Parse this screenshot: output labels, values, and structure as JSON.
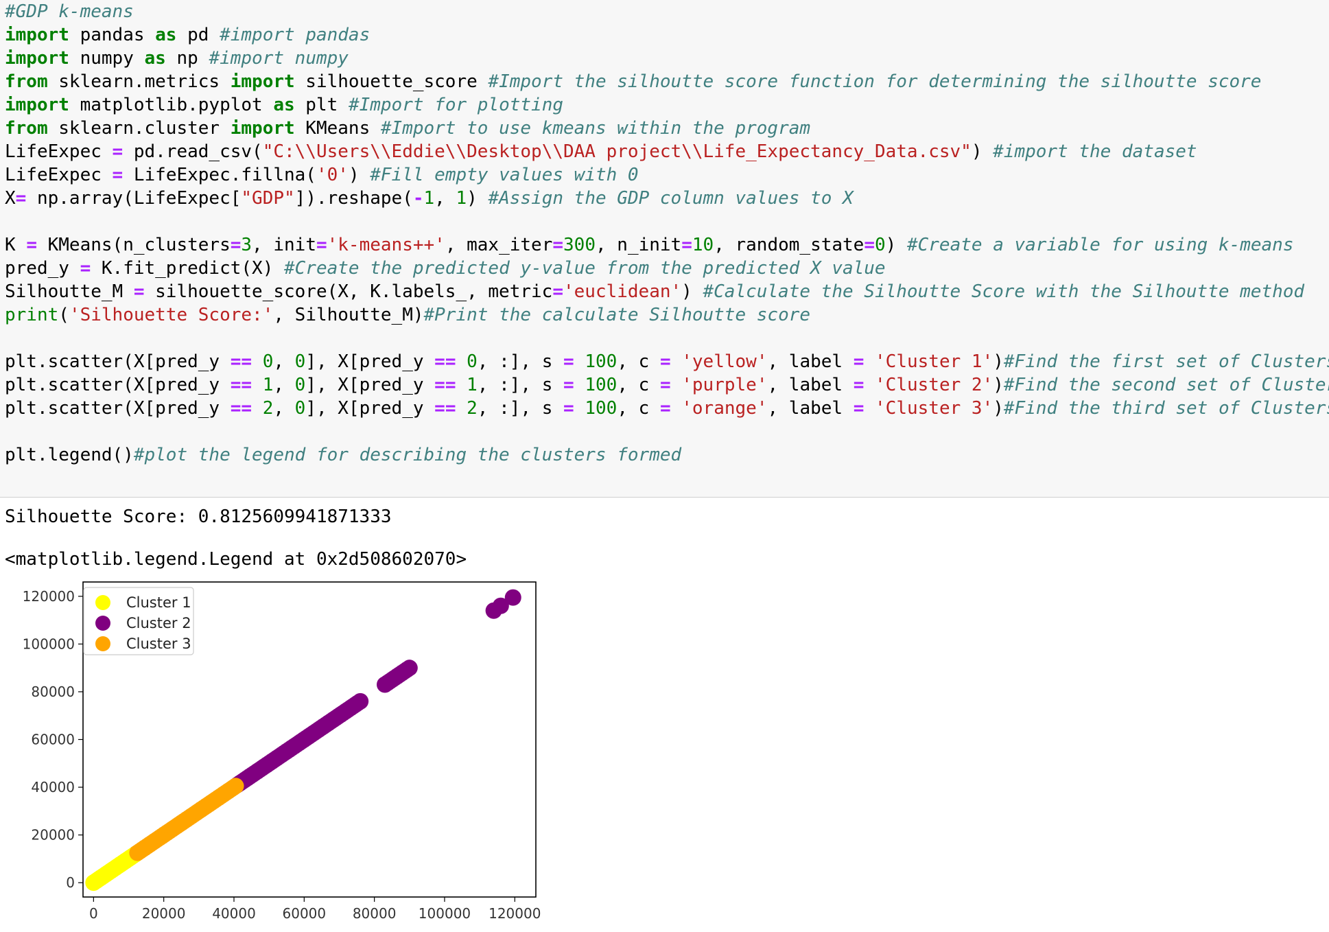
{
  "code_cell": {
    "lines": [
      [
        {
          "t": "#GDP k-means",
          "c": "cm"
        }
      ],
      [
        {
          "t": "import",
          "c": "kw"
        },
        {
          "t": " pandas "
        },
        {
          "t": "as",
          "c": "kw"
        },
        {
          "t": " pd "
        },
        {
          "t": "#import pandas",
          "c": "cm"
        }
      ],
      [
        {
          "t": "import",
          "c": "kw"
        },
        {
          "t": " numpy "
        },
        {
          "t": "as",
          "c": "kw"
        },
        {
          "t": " np "
        },
        {
          "t": "#import numpy",
          "c": "cm"
        }
      ],
      [
        {
          "t": "from",
          "c": "kw"
        },
        {
          "t": " sklearn.metrics "
        },
        {
          "t": "import",
          "c": "kw"
        },
        {
          "t": " silhouette_score "
        },
        {
          "t": "#Import the silhoutte score function for determining the silhoutte score",
          "c": "cm"
        }
      ],
      [
        {
          "t": "import",
          "c": "kw"
        },
        {
          "t": " matplotlib.pyplot "
        },
        {
          "t": "as",
          "c": "kw"
        },
        {
          "t": " plt "
        },
        {
          "t": "#Import for plotting",
          "c": "cm"
        }
      ],
      [
        {
          "t": "from",
          "c": "kw"
        },
        {
          "t": " sklearn.cluster "
        },
        {
          "t": "import",
          "c": "kw"
        },
        {
          "t": " KMeans "
        },
        {
          "t": "#Import to use kmeans within the program",
          "c": "cm"
        }
      ],
      [
        {
          "t": "LifeExpec "
        },
        {
          "t": "=",
          "c": "op"
        },
        {
          "t": " pd.read_csv("
        },
        {
          "t": "\"C:\\\\Users\\\\Eddie\\\\Desktop\\\\DAA project\\\\Life_Expectancy_Data.csv\"",
          "c": "st"
        },
        {
          "t": ") "
        },
        {
          "t": "#import the dataset",
          "c": "cm"
        }
      ],
      [
        {
          "t": "LifeExpec "
        },
        {
          "t": "=",
          "c": "op"
        },
        {
          "t": " LifeExpec.fillna("
        },
        {
          "t": "'0'",
          "c": "st"
        },
        {
          "t": ") "
        },
        {
          "t": "#Fill empty values with 0",
          "c": "cm"
        }
      ],
      [
        {
          "t": "X"
        },
        {
          "t": "=",
          "c": "op"
        },
        {
          "t": " np.array(LifeExpec["
        },
        {
          "t": "\"GDP\"",
          "c": "st"
        },
        {
          "t": "]).reshape("
        },
        {
          "t": "-",
          "c": "op"
        },
        {
          "t": "1",
          "c": "nu"
        },
        {
          "t": ", "
        },
        {
          "t": "1",
          "c": "nu"
        },
        {
          "t": ") "
        },
        {
          "t": "#Assign the GDP column values to X",
          "c": "cm"
        }
      ],
      [],
      [
        {
          "t": "K "
        },
        {
          "t": "=",
          "c": "op"
        },
        {
          "t": " KMeans(n_clusters"
        },
        {
          "t": "=",
          "c": "op"
        },
        {
          "t": "3",
          "c": "nu"
        },
        {
          "t": ", init"
        },
        {
          "t": "=",
          "c": "op"
        },
        {
          "t": "'k-means++'",
          "c": "st"
        },
        {
          "t": ", max_iter"
        },
        {
          "t": "=",
          "c": "op"
        },
        {
          "t": "300",
          "c": "nu"
        },
        {
          "t": ", n_init"
        },
        {
          "t": "=",
          "c": "op"
        },
        {
          "t": "10",
          "c": "nu"
        },
        {
          "t": ", random_state"
        },
        {
          "t": "=",
          "c": "op"
        },
        {
          "t": "0",
          "c": "nu"
        },
        {
          "t": ") "
        },
        {
          "t": "#Create a variable for using k-means",
          "c": "cm"
        }
      ],
      [
        {
          "t": "pred_y "
        },
        {
          "t": "=",
          "c": "op"
        },
        {
          "t": " K.fit_predict(X) "
        },
        {
          "t": "#Create the predicted y-value from the predicted X value",
          "c": "cm"
        }
      ],
      [
        {
          "t": "Silhoutte_M "
        },
        {
          "t": "=",
          "c": "op"
        },
        {
          "t": " silhouette_score(X, K.labels_, metric"
        },
        {
          "t": "=",
          "c": "op"
        },
        {
          "t": "'euclidean'",
          "c": "st"
        },
        {
          "t": ") "
        },
        {
          "t": "#Calculate the Silhoutte Score with the Silhoutte method",
          "c": "cm"
        }
      ],
      [
        {
          "t": "print",
          "c": "bi"
        },
        {
          "t": "("
        },
        {
          "t": "'Silhouette Score:'",
          "c": "st"
        },
        {
          "t": ", Silhoutte_M)"
        },
        {
          "t": "#Print the calculate Silhoutte score",
          "c": "cm"
        }
      ],
      [],
      [
        {
          "t": "plt.scatter(X[pred_y "
        },
        {
          "t": "==",
          "c": "op"
        },
        {
          "t": " "
        },
        {
          "t": "0",
          "c": "nu"
        },
        {
          "t": ", "
        },
        {
          "t": "0",
          "c": "nu"
        },
        {
          "t": "], X[pred_y "
        },
        {
          "t": "==",
          "c": "op"
        },
        {
          "t": " "
        },
        {
          "t": "0",
          "c": "nu"
        },
        {
          "t": ", :], s "
        },
        {
          "t": "=",
          "c": "op"
        },
        {
          "t": " "
        },
        {
          "t": "100",
          "c": "nu"
        },
        {
          "t": ", c "
        },
        {
          "t": "=",
          "c": "op"
        },
        {
          "t": " "
        },
        {
          "t": "'yellow'",
          "c": "st"
        },
        {
          "t": ", label "
        },
        {
          "t": "=",
          "c": "op"
        },
        {
          "t": " "
        },
        {
          "t": "'Cluster 1'",
          "c": "st"
        },
        {
          "t": ")"
        },
        {
          "t": "#Find the first set of Clusters",
          "c": "cm"
        }
      ],
      [
        {
          "t": "plt.scatter(X[pred_y "
        },
        {
          "t": "==",
          "c": "op"
        },
        {
          "t": " "
        },
        {
          "t": "1",
          "c": "nu"
        },
        {
          "t": ", "
        },
        {
          "t": "0",
          "c": "nu"
        },
        {
          "t": "], X[pred_y "
        },
        {
          "t": "==",
          "c": "op"
        },
        {
          "t": " "
        },
        {
          "t": "1",
          "c": "nu"
        },
        {
          "t": ", :], s "
        },
        {
          "t": "=",
          "c": "op"
        },
        {
          "t": " "
        },
        {
          "t": "100",
          "c": "nu"
        },
        {
          "t": ", c "
        },
        {
          "t": "=",
          "c": "op"
        },
        {
          "t": " "
        },
        {
          "t": "'purple'",
          "c": "st"
        },
        {
          "t": ", label "
        },
        {
          "t": "=",
          "c": "op"
        },
        {
          "t": " "
        },
        {
          "t": "'Cluster 2'",
          "c": "st"
        },
        {
          "t": ")"
        },
        {
          "t": "#Find the second set of Clusters",
          "c": "cm"
        }
      ],
      [
        {
          "t": "plt.scatter(X[pred_y "
        },
        {
          "t": "==",
          "c": "op"
        },
        {
          "t": " "
        },
        {
          "t": "2",
          "c": "nu"
        },
        {
          "t": ", "
        },
        {
          "t": "0",
          "c": "nu"
        },
        {
          "t": "], X[pred_y "
        },
        {
          "t": "==",
          "c": "op"
        },
        {
          "t": " "
        },
        {
          "t": "2",
          "c": "nu"
        },
        {
          "t": ", :], s "
        },
        {
          "t": "=",
          "c": "op"
        },
        {
          "t": " "
        },
        {
          "t": "100",
          "c": "nu"
        },
        {
          "t": ", c "
        },
        {
          "t": "=",
          "c": "op"
        },
        {
          "t": " "
        },
        {
          "t": "'orange'",
          "c": "st"
        },
        {
          "t": ", label "
        },
        {
          "t": "=",
          "c": "op"
        },
        {
          "t": " "
        },
        {
          "t": "'Cluster 3'",
          "c": "st"
        },
        {
          "t": ")"
        },
        {
          "t": "#Find the third set of Clusters",
          "c": "cm"
        }
      ],
      [],
      [
        {
          "t": "plt.legend()"
        },
        {
          "t": "#plot the legend for describing the clusters formed",
          "c": "cm"
        }
      ]
    ]
  },
  "output": {
    "silhouette_line": "Silhouette Score: 0.8125609941871333",
    "legend_repr": "<matplotlib.legend.Legend at 0x2d508602070>"
  },
  "colors": {
    "Cluster 1": "#ffff00",
    "Cluster 2": "#800080",
    "Cluster 3": "#ffa500"
  },
  "chart_data": {
    "type": "scatter",
    "title": "",
    "xlabel": "",
    "ylabel": "",
    "xlim": [
      -3000,
      126000
    ],
    "ylim": [
      -6000,
      126000
    ],
    "xticks": [
      0,
      20000,
      40000,
      60000,
      80000,
      100000,
      120000
    ],
    "yticks": [
      0,
      20000,
      40000,
      60000,
      80000,
      100000,
      120000
    ],
    "legend_position": "upper-left",
    "grid": false,
    "series": [
      {
        "name": "Cluster 1",
        "color": "yellow",
        "ranges": [
          [
            0,
            12500
          ]
        ],
        "points": []
      },
      {
        "name": "Cluster 2",
        "color": "purple",
        "ranges": [
          [
            41000,
            76000
          ],
          [
            83000,
            90000
          ]
        ],
        "points": [
          [
            114000,
            114000
          ],
          [
            116000,
            116000
          ],
          [
            119500,
            119500
          ]
        ]
      },
      {
        "name": "Cluster 3",
        "color": "orange",
        "ranges": [
          [
            12500,
            41000
          ]
        ],
        "points": []
      }
    ]
  }
}
